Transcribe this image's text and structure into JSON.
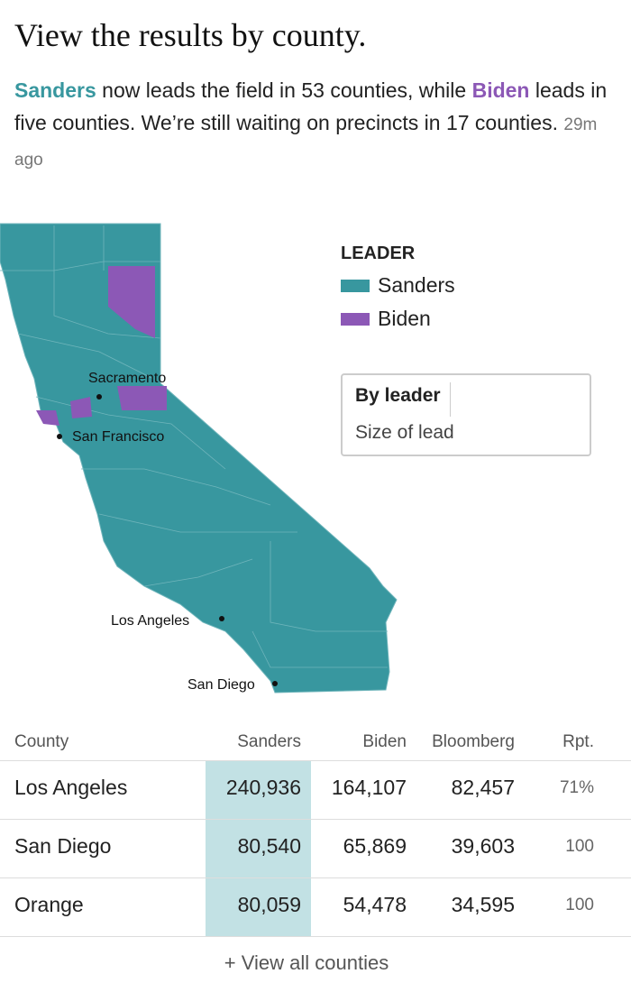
{
  "header": {
    "title": "View the results by county.",
    "summary": {
      "leader_name": "Sanders",
      "text_1": " now leads the field in 53 counties, while ",
      "runner_name": "Biden",
      "text_2": " leads in five counties. We’re still waiting on precincts in 17 counties.",
      "timestamp": "29m ago"
    }
  },
  "legend": {
    "title": "LEADER",
    "items": [
      {
        "label": "Sanders",
        "color": "#38979f"
      },
      {
        "label": "Biden",
        "color": "#8c58b6"
      }
    ]
  },
  "toggle": {
    "options": [
      "By leader",
      "Size of lead"
    ]
  },
  "map": {
    "cities": [
      {
        "label": "Sacramento"
      },
      {
        "label": "San Francisco"
      },
      {
        "label": "Los Angeles"
      },
      {
        "label": "San Diego"
      }
    ]
  },
  "table": {
    "columns": [
      "County",
      "Sanders",
      "Biden",
      "Bloomberg",
      "Rpt."
    ],
    "rows": [
      [
        "Los Angeles",
        "240,936",
        "164,107",
        "82,457",
        "71%"
      ],
      [
        "San Diego",
        "80,540",
        "65,869",
        "39,603",
        "100"
      ],
      [
        "Orange",
        "80,059",
        "54,478",
        "34,595",
        "100"
      ]
    ],
    "footer": "+ View all counties"
  }
}
